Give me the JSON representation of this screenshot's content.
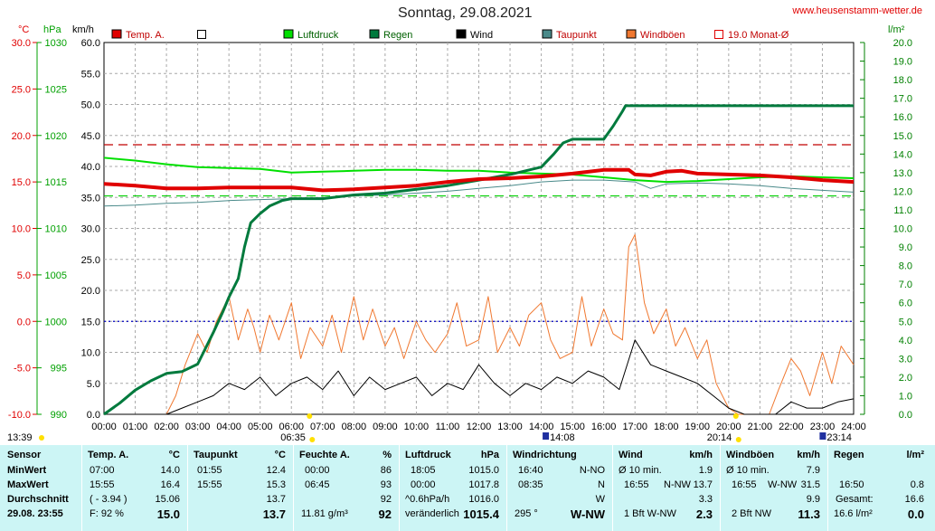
{
  "header": {
    "title": "Sonntag, 29.08.2021",
    "website": "www.heusenstamm-wetter.de"
  },
  "chart_data": {
    "type": "line",
    "axes": {
      "temp": {
        "label": "°C",
        "color": "#e00000",
        "min": -10,
        "max": 30,
        "ticks": [
          "30.0",
          "25.0",
          "20.0",
          "15.0",
          "10.0",
          "5.0",
          "0.0",
          "-5.0",
          "-10.0"
        ]
      },
      "pressure": {
        "label": "hPa",
        "color": "#00a000",
        "min": 990,
        "max": 1030,
        "ticks": [
          "1030",
          "1025",
          "1020",
          "1015",
          "1010",
          "1005",
          "1000",
          "995",
          "990"
        ]
      },
      "wind": {
        "label": "km/h",
        "color": "#000000",
        "min": 0,
        "max": 60,
        "ticks": [
          "60.0",
          "55.0",
          "50.0",
          "45.0",
          "40.0",
          "35.0",
          "30.0",
          "25.0",
          "20.0",
          "15.0",
          "10.0",
          "5.0",
          "0.0"
        ]
      },
      "rain": {
        "label": "l/m²",
        "color": "#008000",
        "min": 0,
        "max": 20,
        "ticks": [
          "20.0",
          "19.0",
          "18.0",
          "17.0",
          "16.0",
          "15.0",
          "14.0",
          "13.0",
          "12.0",
          "11.0",
          "10.0",
          "9.0",
          "8.0",
          "7.0",
          "6.0",
          "5.0",
          "4.0",
          "3.0",
          "2.0",
          "1.0",
          "0.0"
        ]
      }
    },
    "x_ticks": [
      "00:00",
      "01:00",
      "02:00",
      "03:00",
      "04:00",
      "05:00",
      "06:00",
      "07:00",
      "08:00",
      "09:00",
      "10:00",
      "11:00",
      "12:00",
      "13:00",
      "14:00",
      "15:00",
      "16:00",
      "17:00",
      "18:00",
      "19:00",
      "20:00",
      "21:00",
      "22:00",
      "23:00",
      "24:00"
    ],
    "legend": [
      {
        "name": "Temp. A.",
        "color": "#e00000",
        "style": "fill"
      },
      {
        "name": "",
        "color": "#ffffff",
        "style": "box"
      },
      {
        "name": "Luftdruck",
        "color": "#00e000",
        "style": "fill"
      },
      {
        "name": "Regen",
        "color": "#007a3d",
        "style": "fill"
      },
      {
        "name": "Wind",
        "color": "#000000",
        "style": "fill"
      },
      {
        "name": "Taupunkt",
        "color": "#4a8a8a",
        "style": "fill"
      },
      {
        "name": "Windböen",
        "color": "#f07830",
        "style": "fill"
      },
      {
        "name": "19.0 Monat-Ø",
        "color": "#e00000",
        "style": "box"
      }
    ],
    "reference_lines": [
      {
        "name": "19.0 Monat-Ø",
        "axis": "temp",
        "value": 19.0,
        "color": "#c00000",
        "dash": "10,6"
      },
      {
        "name": "Luftdruck Referenz",
        "axis": "pressure",
        "value": 1013.5,
        "color": "#00d000",
        "dash": "10,6"
      },
      {
        "name": "Nulllinie",
        "axis": "temp",
        "value": 0.0,
        "color": "#0000c0",
        "dash": "2,3"
      }
    ],
    "sun_markers": [
      {
        "time": "06:35",
        "hour": 6.58
      },
      {
        "time": "20:14",
        "hour": 20.23
      }
    ],
    "moon_markers": [
      {
        "time": "13:39",
        "hour": 13.65
      },
      {
        "time": "14:08",
        "hour": 14.13
      },
      {
        "time": "23:14",
        "hour": 23.23
      }
    ],
    "series": {
      "temperature": {
        "name": "Temp. A.",
        "color": "#e00000",
        "x": [
          0,
          1,
          2,
          3,
          4,
          5,
          6,
          7,
          8,
          9,
          10,
          11,
          12,
          13,
          14,
          15,
          16,
          16.8,
          17,
          17.5,
          18,
          18.5,
          19,
          20,
          21,
          22,
          23,
          24
        ],
        "y": [
          14.8,
          14.6,
          14.3,
          14.3,
          14.4,
          14.4,
          14.4,
          14.1,
          14.2,
          14.4,
          14.6,
          15.0,
          15.3,
          15.4,
          15.6,
          15.9,
          16.3,
          16.3,
          15.8,
          15.7,
          16.1,
          16.2,
          15.9,
          15.8,
          15.7,
          15.5,
          15.2,
          15.0
        ]
      },
      "dewpoint": {
        "name": "Taupunkt",
        "color": "#4a8a8a",
        "x": [
          0,
          1,
          2,
          3,
          4,
          5,
          6,
          7,
          8,
          9,
          10,
          11,
          12,
          13,
          14,
          15,
          16,
          17,
          17.5,
          18,
          19,
          20,
          21,
          22,
          23,
          24
        ],
        "y": [
          12.4,
          12.5,
          12.7,
          12.8,
          13.0,
          13.1,
          13.2,
          13.3,
          13.5,
          13.6,
          13.8,
          14.0,
          14.3,
          14.6,
          15.0,
          15.2,
          15.2,
          15.0,
          14.3,
          14.8,
          14.9,
          14.8,
          14.6,
          14.3,
          14.1,
          13.9
        ]
      },
      "pressure": {
        "name": "Luftdruck",
        "color": "#00e000",
        "x": [
          0,
          1,
          2,
          3,
          4,
          5,
          6,
          7,
          8,
          9,
          10,
          11,
          12,
          13,
          14,
          15,
          16,
          17,
          18,
          19,
          20,
          21,
          22,
          23,
          24
        ],
        "y": [
          1017.6,
          1017.3,
          1016.9,
          1016.6,
          1016.5,
          1016.4,
          1016.0,
          1016.1,
          1016.2,
          1016.3,
          1016.3,
          1016.2,
          1016.2,
          1016.0,
          1015.9,
          1015.8,
          1015.5,
          1015.2,
          1015.0,
          1015.1,
          1015.3,
          1015.5,
          1015.6,
          1015.5,
          1015.4
        ]
      },
      "rain": {
        "name": "Regen",
        "color": "#007a3d",
        "x": [
          0,
          0.5,
          1,
          1.5,
          2,
          2.5,
          3,
          3.5,
          3.8,
          4,
          4.3,
          4.5,
          4.7,
          5,
          5.3,
          5.7,
          6,
          7,
          8,
          9,
          10,
          11,
          12,
          13,
          13.5,
          14,
          14.4,
          14.7,
          15,
          16,
          16.3,
          16.6,
          16.7,
          16.8,
          17,
          17.5,
          18,
          24
        ],
        "y": [
          0,
          0.6,
          1.3,
          1.8,
          2.2,
          2.3,
          2.7,
          4.4,
          5.5,
          6.3,
          7.3,
          9.0,
          10.3,
          10.8,
          11.2,
          11.5,
          11.6,
          11.6,
          11.8,
          11.9,
          12.1,
          12.3,
          12.6,
          12.9,
          13.1,
          13.3,
          14.0,
          14.6,
          14.8,
          14.8,
          15.5,
          16.3,
          16.6,
          16.6,
          16.6,
          16.6,
          16.6,
          16.6
        ]
      },
      "wind": {
        "name": "Wind",
        "color": "#000000",
        "x": [
          0,
          1,
          2,
          2.5,
          3,
          3.5,
          4,
          4.5,
          5,
          5.5,
          6,
          6.5,
          7,
          7.5,
          8,
          8.5,
          9,
          9.5,
          10,
          10.5,
          11,
          11.5,
          12,
          12.5,
          13,
          13.5,
          14,
          14.5,
          15,
          15.5,
          16,
          16.5,
          17,
          17.5,
          18,
          18.5,
          19,
          19.5,
          20,
          20.5,
          21,
          21.5,
          22,
          22.5,
          23,
          23.5,
          24
        ],
        "y": [
          0,
          0,
          0,
          1,
          2,
          3,
          5,
          4,
          6,
          3,
          5,
          6,
          4,
          7,
          3,
          6,
          4,
          5,
          6,
          3,
          5,
          4,
          8,
          5,
          3,
          5,
          4,
          6,
          5,
          7,
          6,
          4,
          12,
          8,
          7,
          6,
          5,
          3,
          1,
          0,
          0,
          0,
          2,
          1,
          1,
          2,
          2.5
        ]
      },
      "gusts": {
        "name": "Windböen",
        "color": "#f07830",
        "x": [
          0,
          1,
          2,
          2.3,
          2.6,
          3,
          3.3,
          3.6,
          4,
          4.3,
          4.6,
          4.8,
          5,
          5.3,
          5.6,
          6,
          6.3,
          6.6,
          7,
          7.3,
          7.6,
          8,
          8.3,
          8.6,
          9,
          9.3,
          9.6,
          10,
          10.3,
          10.6,
          11,
          11.3,
          11.6,
          12,
          12.3,
          12.6,
          13,
          13.3,
          13.6,
          14,
          14.3,
          14.6,
          15,
          15.3,
          15.6,
          16,
          16.3,
          16.6,
          16.8,
          17,
          17.3,
          17.6,
          18,
          18.3,
          18.6,
          19,
          19.3,
          19.6,
          20,
          20.3,
          20.6,
          21,
          21.3,
          21.6,
          22,
          22.3,
          22.6,
          23,
          23.3,
          23.6,
          24
        ],
        "y": [
          0,
          0,
          0,
          3,
          8,
          13,
          10,
          15,
          19,
          12,
          17,
          14,
          10,
          16,
          12,
          18,
          9,
          14,
          11,
          16,
          10,
          19,
          12,
          17,
          11,
          14,
          9,
          15,
          12,
          10,
          13,
          18,
          11,
          12,
          19,
          10,
          14,
          11,
          16,
          18,
          12,
          9,
          10,
          19,
          11,
          17,
          13,
          12,
          27,
          29,
          18,
          13,
          17,
          11,
          14,
          9,
          12,
          5,
          1,
          0,
          0,
          0,
          0,
          4,
          9,
          7,
          3,
          10,
          5,
          11,
          8
        ]
      }
    }
  },
  "table": {
    "rowlabels": {
      "title": "Sensor",
      "min": "MinWert",
      "max": "MaxWert",
      "avg": "Durchschnitt",
      "now": "29.08. 23:55"
    },
    "temp": {
      "title": "Temp. A.",
      "unit": "°C",
      "min_t": "07:00",
      "min_v": "14.0",
      "max_t": "15:55",
      "max_v": "16.4",
      "avg_a": "( - 3.94 )",
      "avg_v": "15.06",
      "now_a": "F: 92 %",
      "now_v": "15.0"
    },
    "dew": {
      "title": "Taupunkt",
      "unit": "°C",
      "min_t": "01:55",
      "min_v": "12.4",
      "max_t": "15:55",
      "max_v": "15.3",
      "avg_v": "13.7",
      "now_v": "13.7"
    },
    "hum": {
      "title": "Feuchte A.",
      "unit": "%",
      "min_t": "00:00",
      "min_v": "86",
      "max_t": "06:45",
      "max_v": "93",
      "avg_v": "92",
      "now_a": "11.81 g/m³",
      "now_v": "92"
    },
    "press": {
      "title": "Luftdruck",
      "unit": "hPa",
      "min_t": "18:05",
      "min_v": "1015.0",
      "max_t": "00:00",
      "max_v": "1017.8",
      "avg_a": "^0.6hPa/h",
      "avg_v": "1016.0",
      "now_a": "veränderlich",
      "now_v": "1015.4"
    },
    "dir": {
      "title": "Windrichtung",
      "min_t": "16:40",
      "min_v": "N-NO",
      "max_t": "08:35",
      "max_v": "N",
      "avg_v": "W",
      "now_a": "295 °",
      "now_v": "W-NW"
    },
    "wind": {
      "title": "Wind",
      "unit": "km/h",
      "min_t": "Ø 10 min.",
      "min_v": "1.9",
      "max_t": "16:55",
      "max_d": "N-NW",
      "max_v": "13.7",
      "avg_v": "3.3",
      "now_a": "1 Bft W-NW",
      "now_v": "2.3"
    },
    "gust": {
      "title": "Windböen",
      "unit": "km/h",
      "min_t": "Ø 10 min.",
      "min_v": "7.9",
      "max_t": "16:55",
      "max_d": "W-NW",
      "max_v": "31.5",
      "avg_v": "9.9",
      "now_a": "2 Bft NW",
      "now_v": "11.3"
    },
    "rain": {
      "title": "Regen",
      "unit": "l/m²",
      "min_t": "16:50",
      "min_v": "0.8",
      "max_t": "Gesamt:",
      "max_v": "16.6",
      "now_a": "16.6 l/m²",
      "now_v": "0.0"
    }
  }
}
